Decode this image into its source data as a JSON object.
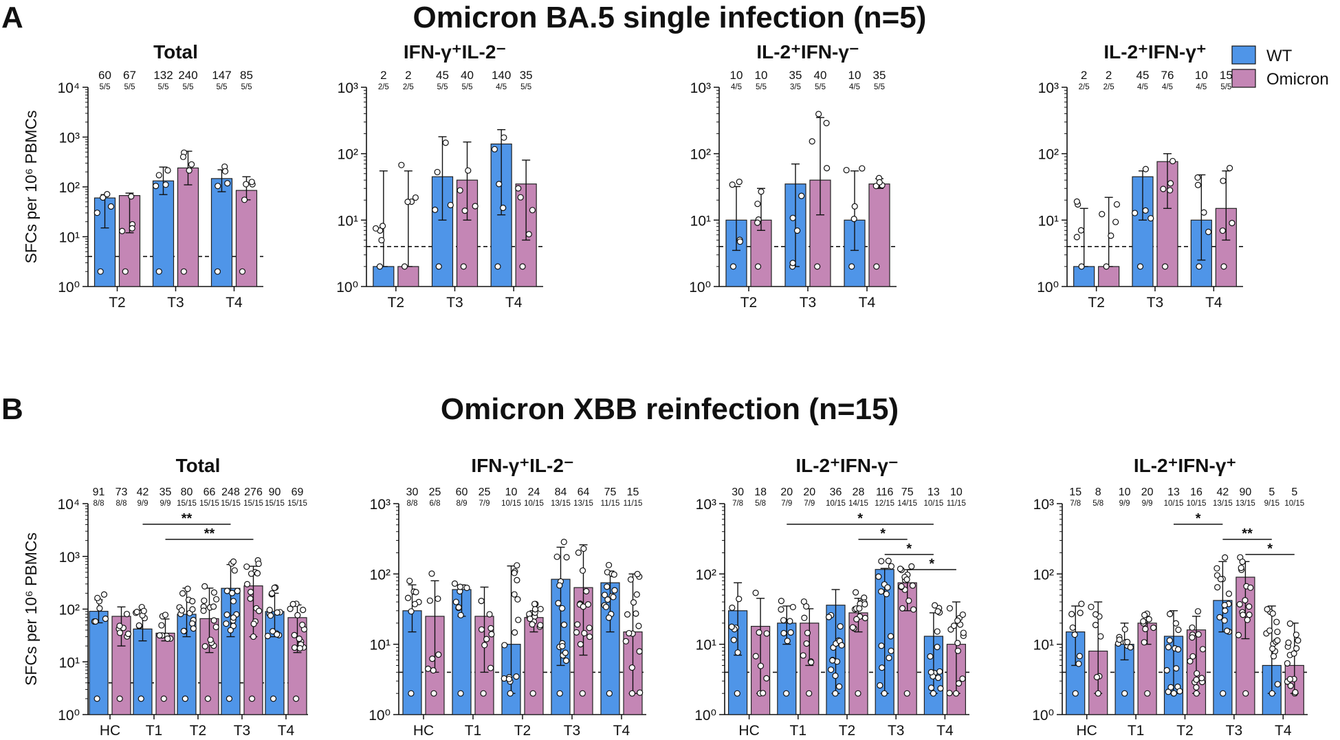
{
  "colors": {
    "wt": "#4f95e8",
    "omicron": "#c486b5",
    "text": "#111111"
  },
  "legend": [
    {
      "label": "WT",
      "color": "#4f95e8"
    },
    {
      "label": "Omicron",
      "color": "#c486b5"
    }
  ],
  "chart_data": [
    {
      "type": "bar",
      "panel": "A",
      "panel_title": "Omicron BA.5 single infection (n=5)",
      "title": "Total",
      "ylabel": "SFCs per 10⁶ PBMCs",
      "xlabel": "",
      "ylim": [
        1,
        10000
      ],
      "yscale": "log",
      "detection_limit": 4,
      "y_ticks": [
        "10⁰",
        "10¹",
        "10²",
        "10³",
        "10⁴"
      ],
      "categories": [
        "T2",
        "T3",
        "T4"
      ],
      "series": [
        {
          "name": "WT",
          "values": [
            60,
            132,
            147
          ],
          "counts": [
            "5/5",
            "5/5",
            "5/5"
          ],
          "ci_low": [
            15,
            70,
            80
          ],
          "ci_high": [
            70,
            250,
            220
          ]
        },
        {
          "name": "Omicron",
          "values": [
            67,
            240,
            85
          ],
          "counts": [
            "5/5",
            "5/5",
            "5/5"
          ],
          "ci_low": [
            12,
            110,
            55
          ],
          "ci_high": [
            75,
            520,
            160
          ]
        }
      ],
      "significance": []
    },
    {
      "type": "bar",
      "panel": "A",
      "title": "IFN-γ⁺IL-2⁻",
      "ylabel": "",
      "xlabel": "",
      "ylim": [
        1,
        1000
      ],
      "yscale": "log",
      "detection_limit": 4,
      "y_ticks": [
        "10⁰",
        "10¹",
        "10²",
        "10³"
      ],
      "categories": [
        "T2",
        "T3",
        "T4"
      ],
      "series": [
        {
          "name": "WT",
          "values": [
            2,
            45,
            140
          ],
          "counts": [
            "2/5",
            "5/5",
            "4/5"
          ],
          "ci_low": [
            2,
            10,
            12
          ],
          "ci_high": [
            55,
            180,
            230
          ]
        },
        {
          "name": "Omicron",
          "values": [
            2,
            40,
            35
          ],
          "counts": [
            "2/5",
            "5/5",
            "5/5"
          ],
          "ci_low": [
            2,
            10,
            5
          ],
          "ci_high": [
            55,
            150,
            80
          ]
        }
      ],
      "significance": []
    },
    {
      "type": "bar",
      "panel": "A",
      "title": "IL-2⁺IFN-γ⁻",
      "ylabel": "",
      "xlabel": "",
      "ylim": [
        1,
        1000
      ],
      "yscale": "log",
      "detection_limit": 4,
      "y_ticks": [
        "10⁰",
        "10¹",
        "10²",
        "10³"
      ],
      "categories": [
        "T2",
        "T3",
        "T4"
      ],
      "series": [
        {
          "name": "WT",
          "values": [
            10,
            35,
            10
          ],
          "counts": [
            "4/5",
            "3/5",
            "4/5"
          ],
          "ci_low": [
            3.5,
            2,
            3.5
          ],
          "ci_high": [
            32,
            70,
            55
          ]
        },
        {
          "name": "Omicron",
          "values": [
            10,
            40,
            35
          ],
          "counts": [
            "5/5",
            "5/5",
            "5/5"
          ],
          "ci_low": [
            7,
            12,
            30
          ],
          "ci_high": [
            30,
            350,
            42
          ]
        }
      ],
      "significance": []
    },
    {
      "type": "bar",
      "panel": "A",
      "title": "IL-2⁺IFN-γ⁺",
      "ylabel": "",
      "xlabel": "",
      "ylim": [
        1,
        1000
      ],
      "yscale": "log",
      "detection_limit": 4,
      "y_ticks": [
        "10⁰",
        "10¹",
        "10²",
        "10³"
      ],
      "categories": [
        "T2",
        "T3",
        "T4"
      ],
      "series": [
        {
          "name": "WT",
          "values": [
            2,
            45,
            10
          ],
          "counts": [
            "2/5",
            "4/5",
            "4/5"
          ],
          "ci_low": [
            2,
            10,
            2.5
          ],
          "ci_high": [
            15,
            55,
            48
          ]
        },
        {
          "name": "Omicron",
          "values": [
            2,
            76,
            15
          ],
          "counts": [
            "2/5",
            "4/5",
            "5/5"
          ],
          "ci_low": [
            2,
            15,
            5
          ],
          "ci_high": [
            22,
            100,
            55
          ]
        }
      ],
      "significance": []
    },
    {
      "type": "bar",
      "panel": "B",
      "panel_title": "Omicron XBB reinfection (n=15)",
      "title": "Total",
      "ylabel": "SFCs per 10⁶ PBMCs",
      "xlabel": "",
      "ylim": [
        1,
        10000
      ],
      "yscale": "log",
      "detection_limit": 4,
      "y_ticks": [
        "10⁰",
        "10¹",
        "10²",
        "10³",
        "10⁴"
      ],
      "categories": [
        "HC",
        "T1",
        "T2",
        "T3",
        "T4"
      ],
      "series": [
        {
          "name": "WT",
          "values": [
            91,
            42,
            80,
            248,
            90
          ],
          "counts": [
            "8/8",
            "9/9",
            "15/15",
            "15/15",
            "15/15"
          ],
          "ci_low": [
            55,
            25,
            30,
            30,
            30
          ],
          "ci_high": [
            150,
            95,
            250,
            700,
            200
          ]
        },
        {
          "name": "Omicron",
          "values": [
            73,
            35,
            66,
            276,
            69
          ],
          "counts": [
            "8/8",
            "9/9",
            "15/15",
            "15/15",
            "15/15"
          ],
          "ci_low": [
            20,
            25,
            15,
            30,
            15
          ],
          "ci_high": [
            110,
            65,
            250,
            650,
            120
          ]
        }
      ],
      "significance": [
        {
          "from": "T1 WT",
          "to": "T3 WT",
          "label": "**"
        },
        {
          "from": "T1 Omicron",
          "to": "T3 Omicron",
          "label": "**"
        }
      ]
    },
    {
      "type": "bar",
      "panel": "B",
      "title": "IFN-γ⁺IL-2⁻",
      "ylabel": "",
      "xlabel": "",
      "ylim": [
        1,
        1000
      ],
      "yscale": "log",
      "detection_limit": 4,
      "y_ticks": [
        "10⁰",
        "10¹",
        "10²",
        "10³"
      ],
      "categories": [
        "HC",
        "T1",
        "T2",
        "T3",
        "T4"
      ],
      "series": [
        {
          "name": "WT",
          "values": [
            30,
            60,
            10,
            84,
            75
          ],
          "counts": [
            "8/8",
            "8/9",
            "10/15",
            "13/15",
            "11/15"
          ],
          "ci_low": [
            15,
            25,
            2,
            5,
            15
          ],
          "ci_high": [
            70,
            70,
            130,
            240,
            110
          ]
        },
        {
          "name": "Omicron",
          "values": [
            25,
            25,
            24,
            64,
            15
          ],
          "counts": [
            "6/8",
            "7/9",
            "10/15",
            "13/15",
            "11/15"
          ],
          "ci_low": [
            4,
            4,
            15,
            7,
            2
          ],
          "ci_high": [
            80,
            65,
            30,
            260,
            100
          ]
        }
      ],
      "significance": []
    },
    {
      "type": "bar",
      "panel": "B",
      "title": "IL-2⁺IFN-γ⁻",
      "ylabel": "",
      "xlabel": "",
      "ylim": [
        1,
        1000
      ],
      "yscale": "log",
      "detection_limit": 4,
      "y_ticks": [
        "10⁰",
        "10¹",
        "10²",
        "10³"
      ],
      "categories": [
        "HC",
        "T1",
        "T2",
        "T3",
        "T4"
      ],
      "series": [
        {
          "name": "WT",
          "values": [
            30,
            20,
            36,
            116,
            13
          ],
          "counts": [
            "7/8",
            "7/9",
            "10/15",
            "12/15",
            "10/15"
          ],
          "ci_low": [
            7,
            10,
            2,
            2,
            2
          ],
          "ci_high": [
            75,
            35,
            60,
            120,
            28
          ]
        },
        {
          "name": "Omicron",
          "values": [
            18,
            20,
            28,
            75,
            10
          ],
          "counts": [
            "5/8",
            "7/9",
            "14/15",
            "14/15",
            "11/15"
          ],
          "ci_low": [
            2,
            5,
            15,
            30,
            2
          ],
          "ci_high": [
            45,
            32,
            45,
            115,
            40
          ]
        }
      ],
      "significance": [
        {
          "from": "T1 WT",
          "to": "T4 WT",
          "label": "*"
        },
        {
          "from": "T2 Omicron",
          "to": "T3 Omicron",
          "label": "*"
        },
        {
          "from": "T3 WT",
          "to": "T4 WT",
          "label": "*"
        },
        {
          "from": "T3 Omicron",
          "to": "T4 Omicron",
          "label": "*"
        }
      ]
    },
    {
      "type": "bar",
      "panel": "B",
      "title": "IL-2⁺IFN-γ⁺",
      "ylabel": "",
      "xlabel": "",
      "ylim": [
        1,
        1000
      ],
      "yscale": "log",
      "detection_limit": 4,
      "y_ticks": [
        "10⁰",
        "10¹",
        "10²",
        "10³"
      ],
      "categories": [
        "HC",
        "T1",
        "T2",
        "T3",
        "T4"
      ],
      "series": [
        {
          "name": "WT",
          "values": [
            15,
            10,
            13,
            42,
            5
          ],
          "counts": [
            "7/8",
            "9/9",
            "10/15",
            "13/15",
            "9/15"
          ],
          "ci_low": [
            5,
            6,
            2,
            15,
            2
          ],
          "ci_high": [
            35,
            20,
            30,
            150,
            35
          ]
        },
        {
          "name": "Omicron",
          "values": [
            8,
            20,
            16,
            90,
            5
          ],
          "counts": [
            "5/8",
            "9/9",
            "10/15",
            "13/15",
            "10/15"
          ],
          "ci_low": [
            2,
            10,
            2,
            12,
            2
          ],
          "ci_high": [
            40,
            22,
            25,
            150,
            20
          ]
        }
      ],
      "significance": [
        {
          "from": "T2 WT",
          "to": "T3 WT",
          "label": "*"
        },
        {
          "from": "T3 WT",
          "to": "T4 WT",
          "label": "**"
        },
        {
          "from": "T3 Omicron",
          "to": "T4 Omicron",
          "label": "*"
        }
      ]
    }
  ]
}
